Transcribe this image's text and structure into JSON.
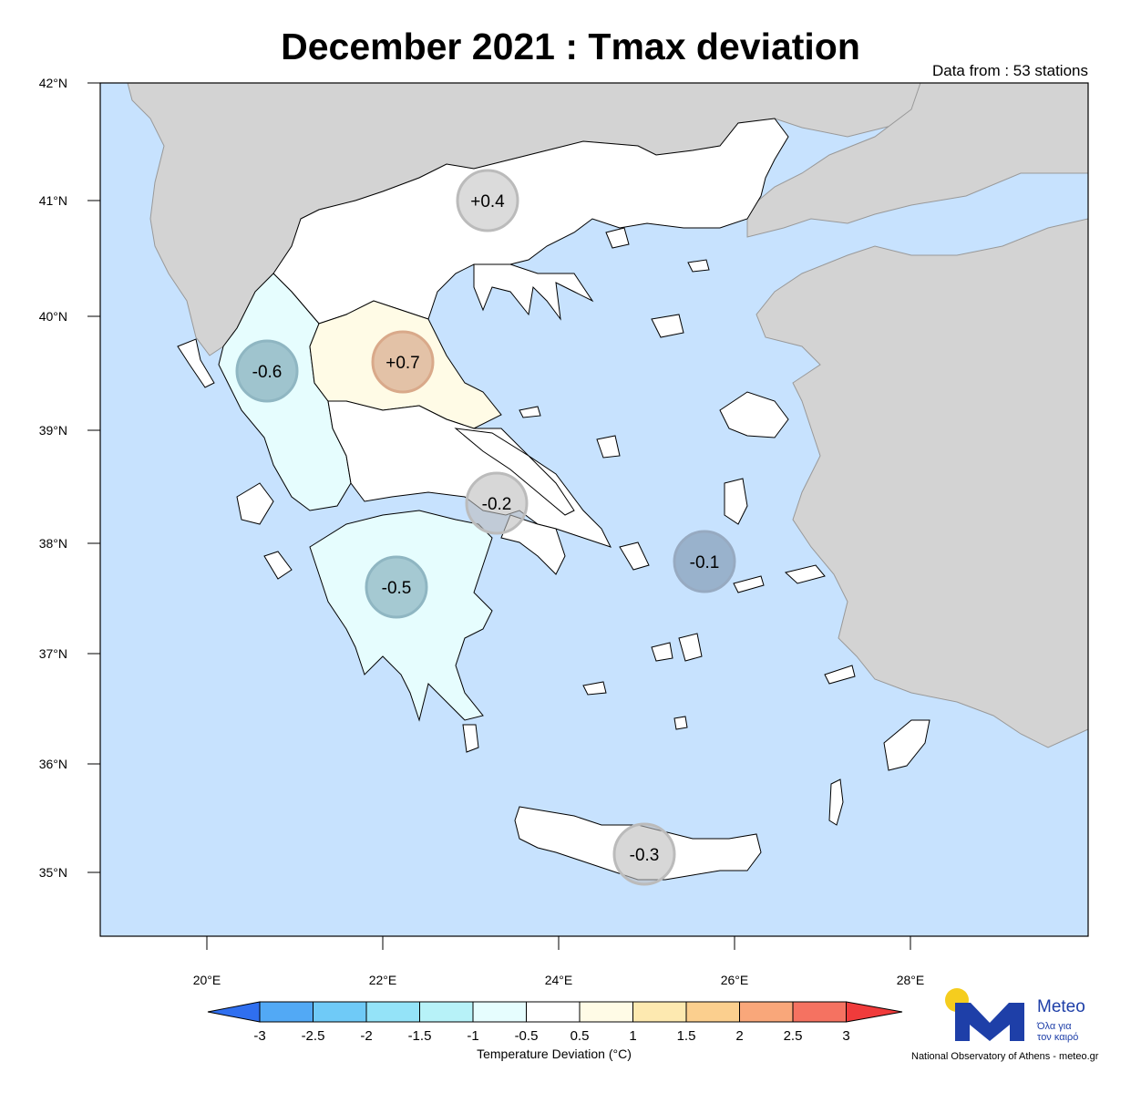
{
  "title": "December 2021 : Tmax deviation",
  "subtitle": "Data from : 53 stations",
  "lat_labels": [
    "42°N",
    "41°N",
    "40°N",
    "39°N",
    "38°N",
    "37°N",
    "36°N",
    "35°N"
  ],
  "lon_labels": [
    "20°E",
    "22°E",
    "24°E",
    "26°E",
    "28°E"
  ],
  "regions": [
    {
      "name": "macedonia-thrace",
      "deviation": "+0.4"
    },
    {
      "name": "epirus",
      "deviation": "-0.6"
    },
    {
      "name": "thessaly",
      "deviation": "+0.7"
    },
    {
      "name": "central-greece",
      "deviation": "-0.2"
    },
    {
      "name": "aegean-islands",
      "deviation": "-0.1"
    },
    {
      "name": "peloponnese",
      "deviation": "-0.5"
    },
    {
      "name": "crete",
      "deviation": "-0.3"
    }
  ],
  "legend": {
    "title": "Temperature Deviation (°C)",
    "ticks": [
      "-3",
      "-2.5",
      "-2",
      "-1.5",
      "-1",
      "-0.5",
      "0.5",
      "1",
      "1.5",
      "2",
      "2.5",
      "3"
    ],
    "colors": [
      "#2f6ff0",
      "#52a9f5",
      "#6fcaf7",
      "#94e3f8",
      "#b7f2f8",
      "#e6fdfe",
      "#ffffff",
      "#fffbe6",
      "#fde9b0",
      "#fbcf8e",
      "#f9a77a",
      "#f57261",
      "#f03b3b"
    ]
  },
  "logo": {
    "word": "Meteo",
    "tagline1": "Όλα για",
    "tagline2": "τον καιρό"
  },
  "footer": "National Observatory of Athens - meteo.gr",
  "colors": {
    "sea": "#c7e2fe",
    "land_other": "#d3d3d3",
    "white_region": "#ffffff",
    "cyan_region": "#e6fdfe",
    "yellow_region": "#fffbe6"
  }
}
